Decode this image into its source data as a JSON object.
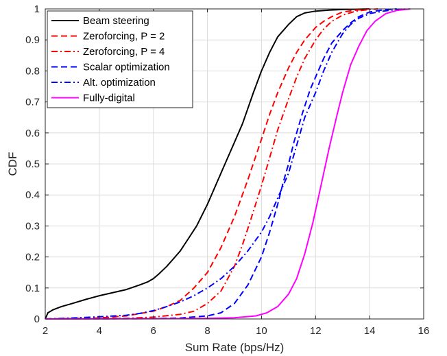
{
  "chart_data": {
    "type": "line",
    "title": "",
    "xlabel": "Sum Rate (bps/Hz)",
    "ylabel": "CDF",
    "xlim": [
      2,
      16
    ],
    "ylim": [
      0,
      1
    ],
    "xticks": [
      2,
      4,
      6,
      8,
      10,
      12,
      14,
      16
    ],
    "yticks": [
      0,
      0.1,
      0.2,
      0.3,
      0.4,
      0.5,
      0.6,
      0.7,
      0.8,
      0.9,
      1
    ],
    "grid": true,
    "legend_position": "top-left",
    "series": [
      {
        "name": "Beam steering",
        "color": "#000000",
        "dash": "solid",
        "x": [
          2.0,
          2.1,
          2.3,
          2.6,
          3.0,
          3.5,
          4.0,
          4.5,
          5.0,
          5.5,
          5.8,
          6.0,
          6.2,
          6.5,
          6.8,
          7.0,
          7.3,
          7.6,
          8.0,
          8.3,
          8.6,
          9.0,
          9.3,
          9.5,
          9.7,
          10.0,
          10.3,
          10.6,
          11.0,
          11.3,
          11.6,
          12.0,
          12.5,
          13.0,
          14.0
        ],
        "y": [
          0.0,
          0.02,
          0.03,
          0.04,
          0.05,
          0.063,
          0.075,
          0.085,
          0.095,
          0.11,
          0.12,
          0.13,
          0.145,
          0.17,
          0.2,
          0.22,
          0.26,
          0.3,
          0.37,
          0.43,
          0.49,
          0.57,
          0.63,
          0.68,
          0.73,
          0.8,
          0.86,
          0.91,
          0.95,
          0.975,
          0.987,
          0.993,
          0.996,
          0.998,
          1.0
        ]
      },
      {
        "name": "Zeroforcing, P = 2",
        "color": "#ff0000",
        "dash": "dashed",
        "x": [
          2.0,
          4.0,
          5.0,
          6.0,
          6.5,
          7.0,
          7.5,
          8.0,
          8.5,
          9.0,
          9.5,
          10.0,
          10.3,
          10.6,
          11.0,
          11.3,
          11.6,
          12.0,
          12.3,
          12.6,
          13.0,
          13.5,
          14.0
        ],
        "y": [
          0.0,
          0.003,
          0.01,
          0.025,
          0.04,
          0.06,
          0.1,
          0.15,
          0.23,
          0.33,
          0.45,
          0.58,
          0.66,
          0.73,
          0.81,
          0.86,
          0.9,
          0.94,
          0.96,
          0.975,
          0.99,
          0.996,
          1.0
        ]
      },
      {
        "name": "Zeroforcing, P = 4",
        "color": "#ff0000",
        "dash": "dashdot",
        "x": [
          2.0,
          5.0,
          6.0,
          7.0,
          7.5,
          8.0,
          8.5,
          9.0,
          9.3,
          9.6,
          10.0,
          10.3,
          10.6,
          11.0,
          11.3,
          11.6,
          12.0,
          12.3,
          12.6,
          13.0,
          13.5,
          14.0,
          14.3
        ],
        "y": [
          0.0,
          0.002,
          0.006,
          0.015,
          0.025,
          0.05,
          0.09,
          0.17,
          0.24,
          0.32,
          0.43,
          0.52,
          0.61,
          0.71,
          0.78,
          0.84,
          0.9,
          0.935,
          0.96,
          0.98,
          0.993,
          0.998,
          1.0
        ]
      },
      {
        "name": "Scalar optimization",
        "color": "#0000ff",
        "dash": "dashed",
        "x": [
          2.0,
          6.0,
          7.0,
          8.0,
          8.5,
          9.0,
          9.5,
          10.0,
          10.3,
          10.6,
          10.8,
          11.0,
          11.2,
          11.5,
          11.8,
          12.0,
          12.3,
          12.6,
          13.0,
          13.3,
          13.6,
          14.0,
          14.5,
          15.0
        ],
        "y": [
          0.0,
          0.001,
          0.003,
          0.01,
          0.02,
          0.05,
          0.11,
          0.2,
          0.28,
          0.37,
          0.44,
          0.5,
          0.57,
          0.66,
          0.74,
          0.78,
          0.84,
          0.89,
          0.93,
          0.955,
          0.975,
          0.99,
          0.997,
          1.0
        ]
      },
      {
        "name": "Alt. optimization",
        "color": "#0000ff",
        "dash": "dashdot",
        "x": [
          2.0,
          3.0,
          4.0,
          5.0,
          5.5,
          6.0,
          6.5,
          7.0,
          7.5,
          8.0,
          8.5,
          9.0,
          9.5,
          10.0,
          10.3,
          10.6,
          11.0,
          11.3,
          11.6,
          12.0,
          12.3,
          12.6,
          13.0,
          13.3,
          13.6,
          14.0,
          14.5,
          15.0,
          15.3
        ],
        "y": [
          0.0,
          0.003,
          0.007,
          0.012,
          0.018,
          0.027,
          0.04,
          0.055,
          0.075,
          0.1,
          0.13,
          0.17,
          0.22,
          0.28,
          0.33,
          0.39,
          0.47,
          0.56,
          0.65,
          0.73,
          0.8,
          0.86,
          0.92,
          0.95,
          0.97,
          0.985,
          0.993,
          0.998,
          1.0
        ]
      },
      {
        "name": "Fully-digital",
        "color": "#ff00ff",
        "dash": "solid",
        "x": [
          2.0,
          7.0,
          8.0,
          9.0,
          9.8,
          10.2,
          10.6,
          11.0,
          11.3,
          11.6,
          11.9,
          12.2,
          12.5,
          12.8,
          13.0,
          13.3,
          13.6,
          13.9,
          14.2,
          14.6,
          15.0,
          15.5
        ],
        "y": [
          0.0,
          0.001,
          0.002,
          0.004,
          0.01,
          0.02,
          0.04,
          0.08,
          0.13,
          0.21,
          0.31,
          0.43,
          0.55,
          0.66,
          0.73,
          0.82,
          0.88,
          0.93,
          0.96,
          0.985,
          0.995,
          1.0
        ]
      }
    ]
  }
}
